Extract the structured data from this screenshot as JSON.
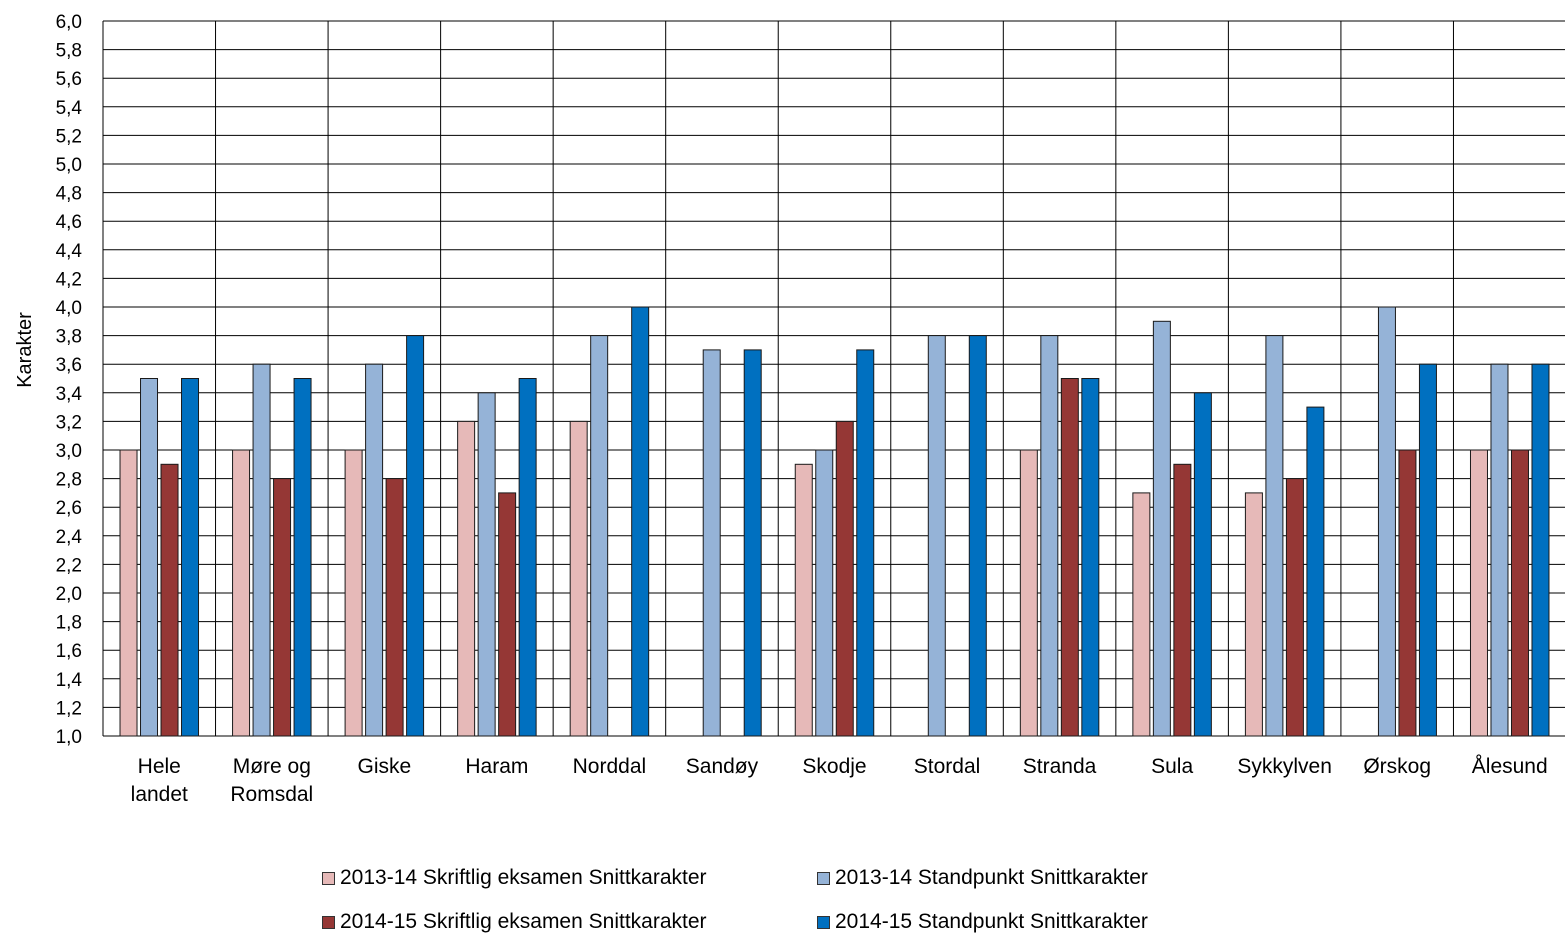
{
  "chart_data": {
    "type": "bar",
    "ylabel": "Karakter",
    "ylim": [
      1.0,
      6.0
    ],
    "ytick_step": 0.2,
    "ytick_labels": [
      "1,0",
      "1,2",
      "1,4",
      "1,6",
      "1,8",
      "2,0",
      "2,2",
      "2,4",
      "2,6",
      "2,8",
      "3,0",
      "3,2",
      "3,4",
      "3,6",
      "3,8",
      "4,0",
      "4,2",
      "4,4",
      "4,6",
      "4,8",
      "5,0",
      "5,2",
      "5,4",
      "5,6",
      "5,8",
      "6,0"
    ],
    "grid": true,
    "legend_position": "bottom",
    "categories": [
      [
        "Hele",
        "landet"
      ],
      [
        "Møre og",
        "Romsdal"
      ],
      [
        "Giske"
      ],
      [
        "Haram"
      ],
      [
        "Norddal"
      ],
      [
        "Sandøy"
      ],
      [
        "Skodje"
      ],
      [
        "Stordal"
      ],
      [
        "Stranda"
      ],
      [
        "Sula"
      ],
      [
        "Sykkylven"
      ],
      [
        "Ørskog"
      ],
      [
        "Ålesund"
      ]
    ],
    "series": [
      {
        "name": "2013-14 Skriftlig eksamen Snittkarakter",
        "color": "#E6B9B8",
        "values": [
          3.0,
          3.0,
          3.0,
          3.2,
          3.2,
          null,
          2.9,
          null,
          3.0,
          2.7,
          2.7,
          null,
          3.0
        ]
      },
      {
        "name": "2013-14 Standpunkt Snittkarakter",
        "color": "#95B3D7",
        "values": [
          3.5,
          3.6,
          3.6,
          3.4,
          3.8,
          3.7,
          3.0,
          3.8,
          3.8,
          3.9,
          3.8,
          4.0,
          3.6
        ]
      },
      {
        "name": "2014-15 Skriftlig eksamen Snittkarakter",
        "color": "#953735",
        "values": [
          2.9,
          2.8,
          2.8,
          2.7,
          null,
          null,
          3.2,
          null,
          3.5,
          2.9,
          2.8,
          3.0,
          3.0
        ]
      },
      {
        "name": "2014-15 Standpunkt Snittkarakter",
        "color": "#0070C0",
        "values": [
          3.5,
          3.5,
          3.8,
          3.5,
          4.0,
          3.7,
          3.7,
          3.8,
          3.5,
          3.4,
          3.3,
          3.6,
          3.6
        ]
      }
    ]
  }
}
